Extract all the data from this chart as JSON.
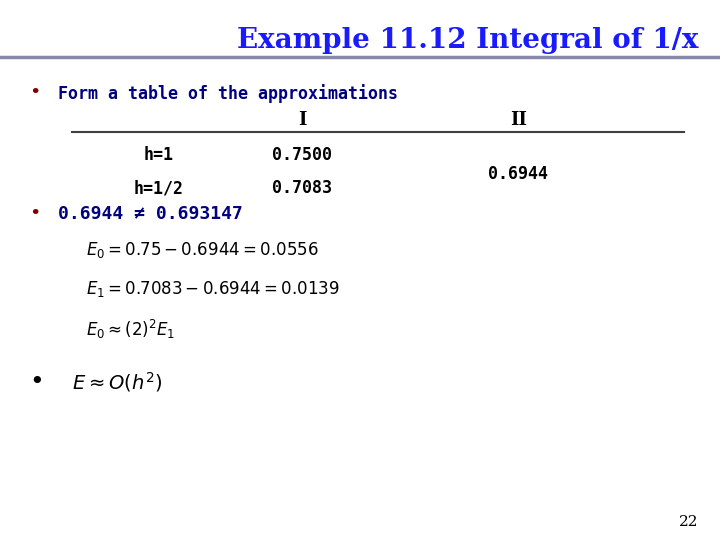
{
  "title": "Example 11.12 Integral of 1/x",
  "title_color": "#1a1aff",
  "title_fontsize": 20,
  "bg_color": "#ffffff",
  "slide_number": "22",
  "bullet1_text": "Form a table of the approximations",
  "bullet1_color": "#000080",
  "col_I_label": "I",
  "col_II_label": "II",
  "row1_label": "h=1",
  "row1_I": "0.7500",
  "row2_label": "h=1/2",
  "row2_I": "0.7083",
  "row_II": "0.6944",
  "bullet2_text": "0.6944 ≠ 0.693147",
  "bullet2_color": "#000080",
  "eq1": "$E_0 = 0.75 - 0.6944 = 0.0556$",
  "eq2": "$E_1 = 0.7083 - 0.6944 = 0.0139$",
  "eq3": "$E_0 \\approx (2)^2 E_1$",
  "bullet3_eq": "$E \\approx O(h^2)$",
  "header_line_color": "#808080",
  "table_line_color": "#404040",
  "title_line_color": "#8888aa"
}
